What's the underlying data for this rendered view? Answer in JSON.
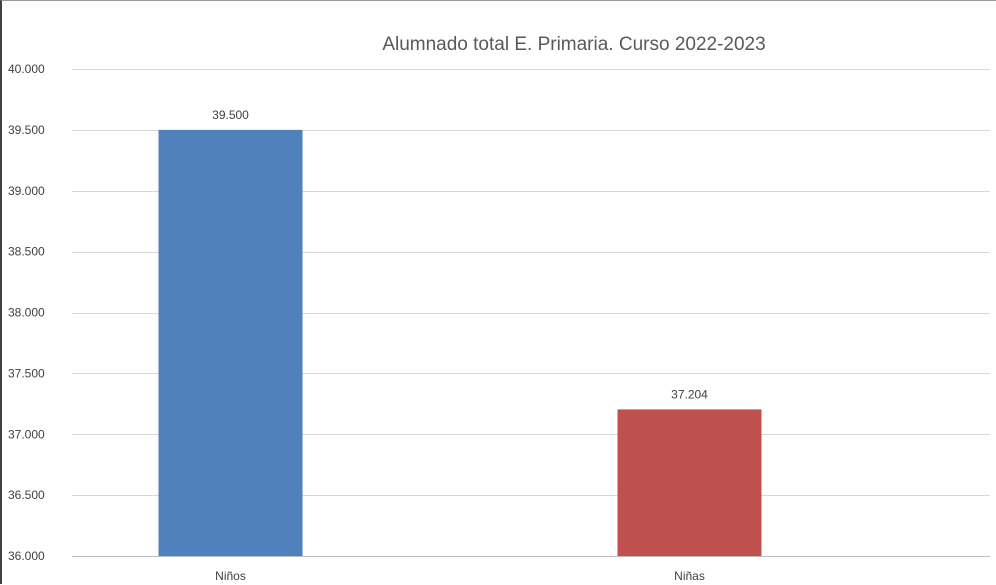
{
  "chart_data": {
    "type": "bar",
    "title": "Alumnado total E. Primaria. Curso 2022-2023",
    "xlabel": "",
    "ylabel": "",
    "categories": [
      "Niños",
      "Niñas"
    ],
    "values": [
      39500,
      37204
    ],
    "value_labels": [
      "39.500",
      "37.204"
    ],
    "bar_colors": [
      "#4F81BD",
      "#C0504D"
    ],
    "ylim": [
      36000,
      40000
    ],
    "yticks": [
      36000,
      36500,
      37000,
      37500,
      38000,
      38500,
      39000,
      39500,
      40000
    ],
    "ytick_labels": [
      "36.000",
      "36.500",
      "37.000",
      "37.500",
      "38.000",
      "38.500",
      "39.000",
      "39.500",
      "40.000"
    ],
    "grid": true,
    "legend": "none"
  }
}
